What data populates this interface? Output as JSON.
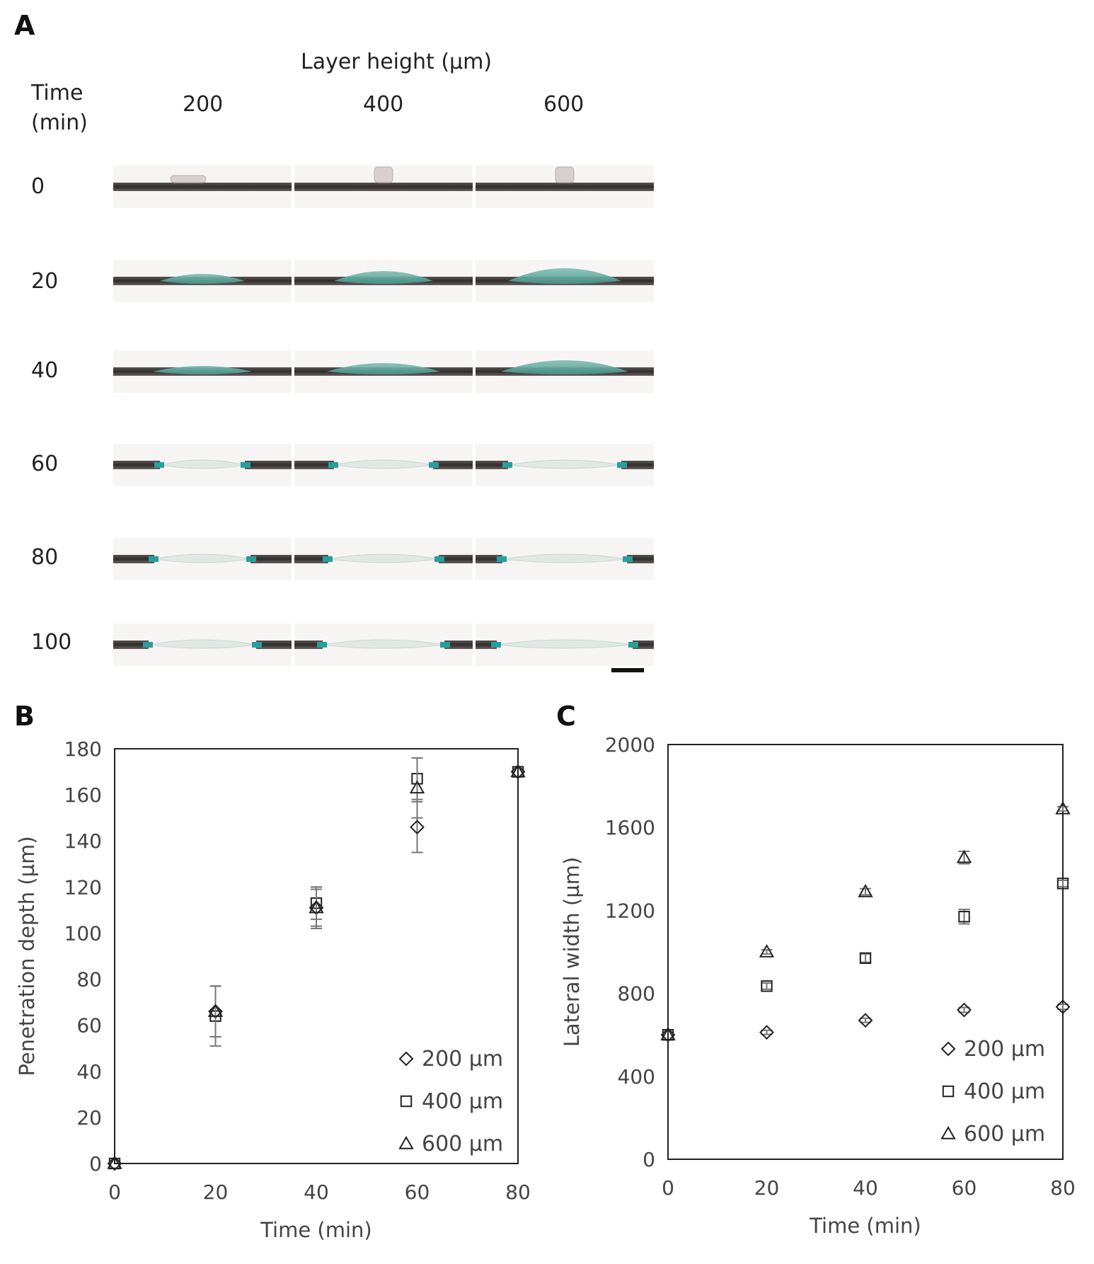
{
  "panel_a": {
    "letter": "A",
    "header": "Layer height (µm)",
    "time_header_line1": "Time",
    "time_header_line2": "(min)",
    "columns": [
      "200",
      "400",
      "600"
    ],
    "rows": [
      "0",
      "20",
      "40",
      "60",
      "80",
      "100"
    ]
  },
  "chart_data": [
    {
      "panel": "B",
      "type": "scatter",
      "title": "",
      "xlabel": "Time (min)",
      "ylabel": "Penetration depth (µm)",
      "xlim": [
        0,
        80
      ],
      "ylim": [
        0,
        180
      ],
      "xticks": [
        0,
        20,
        40,
        60,
        80
      ],
      "yticks": [
        0,
        20,
        40,
        60,
        80,
        100,
        120,
        140,
        160,
        180
      ],
      "legend_position": "bottom-right",
      "series": [
        {
          "name": "200 µm",
          "marker": "diamond",
          "x": [
            0,
            20,
            40,
            60,
            80
          ],
          "y": [
            0,
            66,
            111,
            146,
            170
          ],
          "err": [
            0,
            11,
            9,
            11,
            0
          ]
        },
        {
          "name": "400 µm",
          "marker": "square",
          "x": [
            0,
            20,
            40,
            60,
            80
          ],
          "y": [
            0,
            64,
            113,
            167,
            170
          ],
          "err": [
            0,
            13,
            7,
            9,
            0
          ]
        },
        {
          "name": "600 µm",
          "marker": "triangle",
          "x": [
            0,
            20,
            40,
            60,
            80
          ],
          "y": [
            0,
            66,
            111,
            163,
            170
          ],
          "err": [
            0,
            11,
            8,
            13,
            0
          ]
        }
      ]
    },
    {
      "panel": "C",
      "type": "scatter",
      "title": "",
      "xlabel": "Time (min)",
      "ylabel": "Lateral width (µm)",
      "xlim": [
        0,
        80
      ],
      "ylim": [
        0,
        2000
      ],
      "xticks": [
        0,
        20,
        40,
        60,
        80
      ],
      "yticks": [
        0,
        400,
        800,
        1200,
        1600,
        2000
      ],
      "legend_position": "bottom-right",
      "series": [
        {
          "name": "200 µm",
          "marker": "diamond",
          "x": [
            0,
            20,
            40,
            60,
            80
          ],
          "y": [
            600,
            612,
            670,
            720,
            735
          ],
          "err": [
            0,
            10,
            10,
            12,
            12
          ]
        },
        {
          "name": "400 µm",
          "marker": "square",
          "x": [
            0,
            20,
            40,
            60,
            80
          ],
          "y": [
            600,
            835,
            970,
            1170,
            1330
          ],
          "err": [
            0,
            15,
            20,
            35,
            15
          ]
        },
        {
          "name": "600 µm",
          "marker": "triangle",
          "x": [
            0,
            20,
            40,
            60,
            80
          ],
          "y": [
            600,
            1000,
            1290,
            1455,
            1690
          ],
          "err": [
            0,
            10,
            15,
            30,
            10
          ]
        }
      ]
    }
  ],
  "colors": {
    "dark_band": "#3c3a3a",
    "teal": "#2a9d9d",
    "gel": "#dfe8e4",
    "axis": "#222222",
    "tick_text": "#444444",
    "error_bar": "#777777"
  }
}
